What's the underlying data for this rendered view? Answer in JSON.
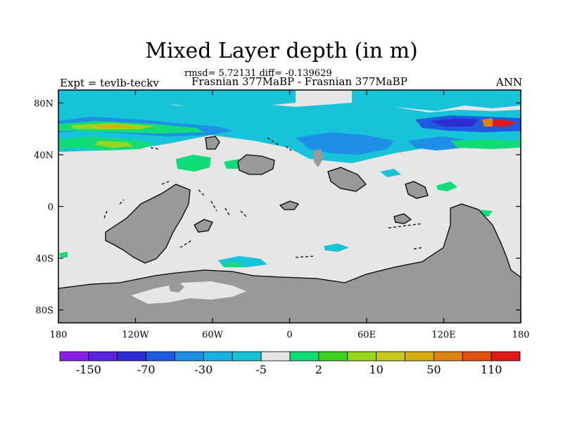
{
  "header": {
    "title": "Mixed Layer depth (in m)",
    "stats": "rmsd= 5.72131 diff= -0.139629",
    "subtitle": "Frasnian 377MaBP - Frasnian 377MaBP",
    "expt": "Expt = tevlb-teckv",
    "season": "ANN"
  },
  "map": {
    "lat_ticks": [
      "80N",
      "40N",
      "0",
      "40S",
      "80S"
    ],
    "lat_values": [
      80,
      40,
      0,
      -40,
      -80
    ],
    "lon_ticks": [
      "180",
      "120W",
      "60W",
      "0",
      "60E",
      "120E",
      "180"
    ],
    "lon_values": [
      -180,
      -120,
      -60,
      0,
      60,
      120,
      180
    ],
    "lat_range": [
      -90,
      90
    ],
    "lon_range": [
      -180,
      180
    ],
    "colors": {
      "land": "#999999",
      "ocean_background": "#e6e6e6",
      "coast": "#000000"
    }
  },
  "colorbar": {
    "labels": [
      "-150",
      "-70",
      "-30",
      "-5",
      "2",
      "10",
      "50",
      "110"
    ],
    "colors": [
      "#8a1fe6",
      "#5a23e0",
      "#2d2dd4",
      "#1f5be0",
      "#1d8fe6",
      "#18b0e0",
      "#17c3d8",
      "#e6e6e6",
      "#12dc7a",
      "#3cd21e",
      "#9ad61c",
      "#c8c81a",
      "#d7ae10",
      "#e2820e",
      "#e0520c",
      "#e01818"
    ]
  }
}
